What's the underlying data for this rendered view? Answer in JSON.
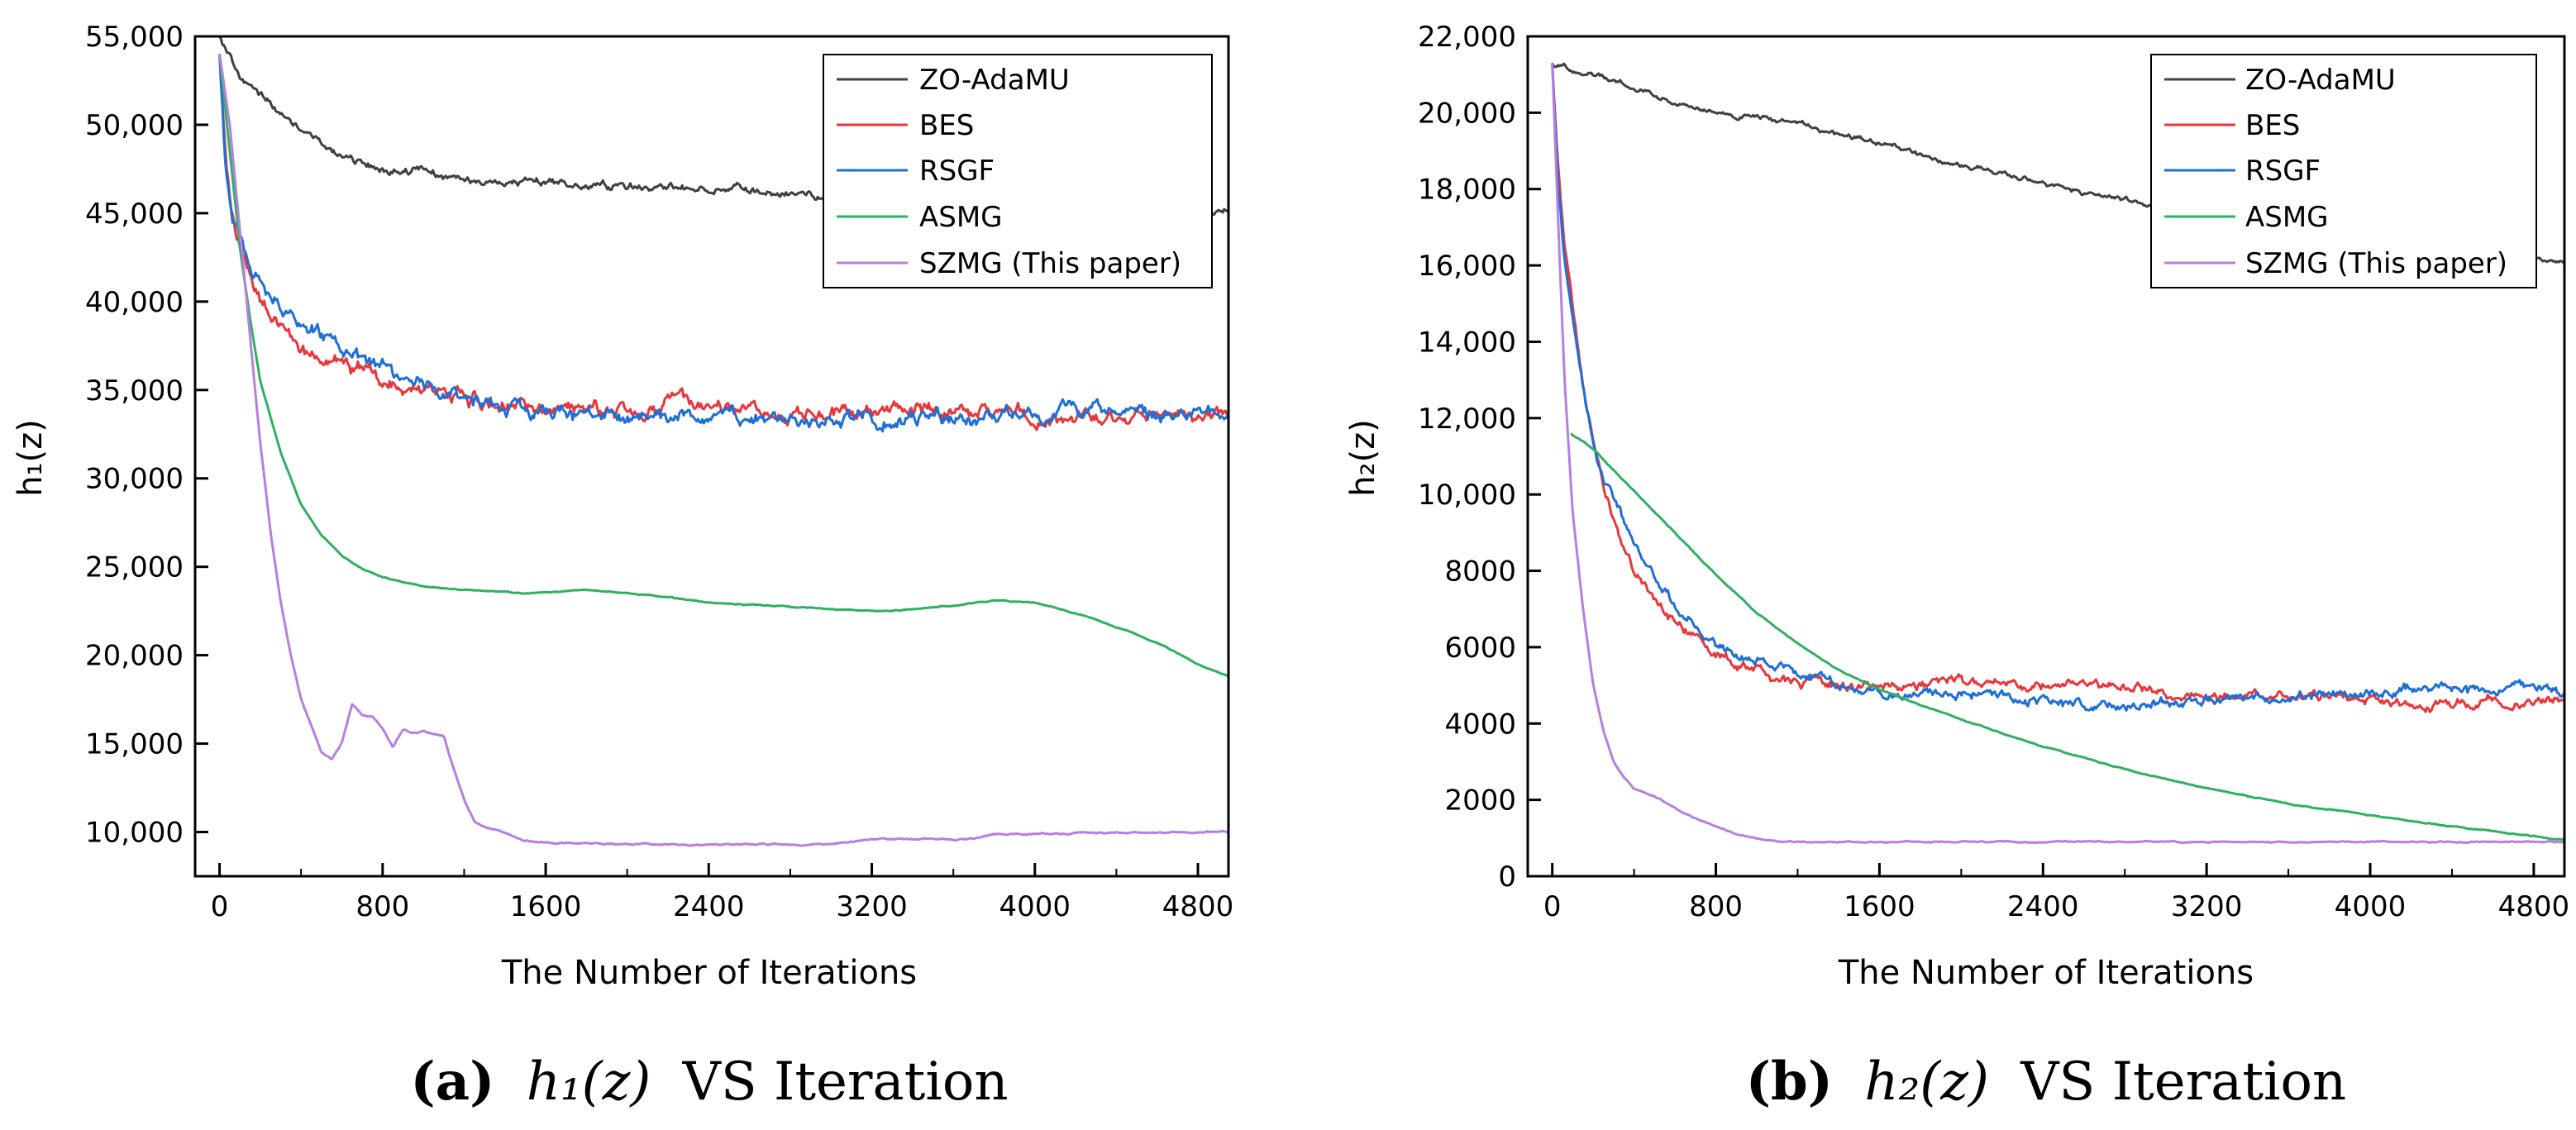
{
  "chart_data": [
    {
      "type": "line",
      "panel": "a",
      "caption": {
        "letter": "(a)",
        "math": "h₁(z)",
        "text": "VS Iteration"
      },
      "xlabel": "The Number of Iterations",
      "ylabel": "h₁(z)",
      "xlim": [
        -120,
        4950
      ],
      "ylim": [
        7500,
        55000
      ],
      "xticks": [
        0,
        800,
        1600,
        2400,
        3200,
        4000,
        4800
      ],
      "xtick_labels": [
        "0",
        "800",
        "1600",
        "2400",
        "3200",
        "4000",
        "4800"
      ],
      "yticks": [
        10000,
        15000,
        20000,
        25000,
        30000,
        35000,
        40000,
        45000,
        50000,
        55000
      ],
      "ytick_labels": [
        "10,000",
        "15,000",
        "20,000",
        "25,000",
        "30,000",
        "35,000",
        "40,000",
        "45,000",
        "50,000",
        "55,000"
      ],
      "grid": false,
      "legend_position": "top-right",
      "series": [
        {
          "name": "ZO-AdaMU",
          "color": "#404040",
          "noise": 200,
          "x": [
            0,
            50,
            100,
            200,
            300,
            400,
            500,
            600,
            700,
            800,
            900,
            1000,
            1100,
            1200,
            1400,
            1600,
            1800,
            2000,
            2200,
            2400,
            2600,
            2800,
            3000,
            3200,
            3400,
            3600,
            3800,
            4000,
            4200,
            4400,
            4600,
            4800,
            4950
          ],
          "y": [
            55000,
            53800,
            52800,
            51600,
            50600,
            49700,
            49000,
            48300,
            47800,
            47500,
            47400,
            47300,
            47000,
            46800,
            46700,
            46700,
            46600,
            46500,
            46500,
            46400,
            46300,
            46100,
            45900,
            45800,
            45700,
            45600,
            45500,
            45400,
            45300,
            45300,
            45200,
            45200,
            45100
          ]
        },
        {
          "name": "BES",
          "color": "#e8373b",
          "noise": 380,
          "x": [
            0,
            30,
            60,
            100,
            150,
            200,
            300,
            400,
            500,
            600,
            700,
            800,
            1000,
            1200,
            1400,
            1600,
            1800,
            2000,
            2400,
            2800,
            3200,
            3600,
            4000,
            4400,
            4800,
            4950
          ],
          "y": [
            54000,
            48000,
            45500,
            43500,
            41500,
            40000,
            38500,
            37500,
            36800,
            36300,
            35900,
            35500,
            35000,
            34600,
            34300,
            34000,
            34000,
            34100,
            34000,
            34000,
            33700,
            33700,
            33500,
            33400,
            33500,
            33500
          ]
        },
        {
          "name": "RSGF",
          "color": "#1f6fd6",
          "noise": 380,
          "x": [
            0,
            30,
            60,
            100,
            150,
            200,
            300,
            400,
            500,
            600,
            700,
            800,
            1000,
            1200,
            1400,
            1600,
            1800,
            2000,
            2400,
            2800,
            3200,
            3600,
            4000,
            4400,
            4800,
            4950
          ],
          "y": [
            54000,
            47500,
            45000,
            43500,
            42000,
            41000,
            39800,
            38800,
            38000,
            37200,
            36500,
            36000,
            35200,
            34500,
            34000,
            33800,
            33600,
            33500,
            33400,
            33400,
            33300,
            33600,
            33900,
            33800,
            33800,
            33800
          ]
        },
        {
          "name": "ASMG",
          "color": "#2fb061",
          "noise": 25,
          "x": [
            0,
            50,
            100,
            150,
            200,
            300,
            400,
            500,
            600,
            700,
            800,
            1000,
            1200,
            1500,
            1800,
            2100,
            2400,
            2700,
            3000,
            3300,
            3600,
            3800,
            4000,
            4200,
            4400,
            4600,
            4800,
            4950
          ],
          "y": [
            54000,
            48500,
            43000,
            39000,
            35500,
            31500,
            28500,
            26800,
            25600,
            24900,
            24400,
            23900,
            23700,
            23500,
            23700,
            23400,
            23000,
            22800,
            22600,
            22500,
            22800,
            23100,
            23000,
            22400,
            21600,
            20700,
            19500,
            18800
          ]
        },
        {
          "name": "SZMG (This paper)",
          "color": "#b77fe0",
          "noise": 40,
          "x": [
            0,
            50,
            100,
            150,
            200,
            250,
            300,
            350,
            400,
            450,
            500,
            550,
            600,
            650,
            700,
            750,
            800,
            850,
            900,
            950,
            1000,
            1050,
            1100,
            1150,
            1200,
            1250,
            1300,
            1400,
            1500,
            1600,
            2000,
            2400,
            2800,
            3000,
            3100,
            3200,
            3700,
            3800,
            4000,
            4400,
            4800,
            4950
          ],
          "y": [
            54000,
            50000,
            44000,
            38000,
            32000,
            27000,
            23000,
            20000,
            17500,
            16000,
            14500,
            14100,
            15000,
            17200,
            16600,
            16500,
            15900,
            14800,
            15800,
            15600,
            15700,
            15500,
            15400,
            13500,
            11800,
            10600,
            10300,
            9900,
            9500,
            9400,
            9300,
            9300,
            9300,
            9300,
            9500,
            9600,
            9600,
            9900,
            9900,
            9950,
            10000,
            10000
          ]
        }
      ]
    },
    {
      "type": "line",
      "panel": "b",
      "caption": {
        "letter": "(b)",
        "math": "h₂(z)",
        "text": "VS Iteration"
      },
      "xlabel": "The Number of Iterations",
      "ylabel": "h₂(z)",
      "xlim": [
        -120,
        4950
      ],
      "ylim": [
        0,
        22000
      ],
      "xticks": [
        0,
        800,
        1600,
        2400,
        3200,
        4000,
        4800
      ],
      "xtick_labels": [
        "0",
        "800",
        "1600",
        "2400",
        "3200",
        "4000",
        "4800"
      ],
      "yticks": [
        0,
        2000,
        4000,
        6000,
        8000,
        10000,
        12000,
        14000,
        16000,
        18000,
        20000,
        22000
      ],
      "ytick_labels": [
        "0",
        "2000",
        "4000",
        "6000",
        "8000",
        "10,000",
        "12,000",
        "14,000",
        "16,000",
        "18,000",
        "20,000",
        "22,000"
      ],
      "grid": false,
      "legend_position": "top-right",
      "series": [
        {
          "name": "ZO-AdaMU",
          "color": "#404040",
          "noise": 60,
          "x": [
            0,
            200,
            400,
            600,
            800,
            1000,
            1200,
            1400,
            1600,
            1800,
            2000,
            2200,
            2400,
            2600,
            2800,
            3000,
            3200,
            3400,
            3600,
            3800,
            4000,
            4200,
            4400,
            4600,
            4800,
            4950
          ],
          "y": [
            21300,
            21000,
            20700,
            20200,
            20000,
            19900,
            19700,
            19400,
            19200,
            18900,
            18600,
            18400,
            18200,
            17900,
            17700,
            17500,
            17400,
            17200,
            17100,
            17000,
            16800,
            16600,
            16400,
            16300,
            16200,
            16050
          ]
        },
        {
          "name": "BES",
          "color": "#e8373b",
          "noise": 120,
          "x": [
            0,
            30,
            60,
            100,
            150,
            200,
            250,
            300,
            400,
            500,
            600,
            700,
            800,
            1000,
            1200,
            1400,
            1600,
            2000,
            2400,
            2800,
            3200,
            3600,
            4000,
            4200,
            4400,
            4600,
            4800,
            4950
          ],
          "y": [
            21300,
            18500,
            16500,
            14800,
            13000,
            11500,
            10300,
            9300,
            8000,
            7200,
            6700,
            6200,
            5800,
            5400,
            5100,
            5000,
            4900,
            5100,
            5000,
            5000,
            4700,
            4800,
            4700,
            4500,
            4500,
            4600,
            4600,
            4600
          ]
        },
        {
          "name": "RSGF",
          "color": "#1f6fd6",
          "noise": 120,
          "x": [
            0,
            30,
            60,
            100,
            150,
            200,
            250,
            300,
            400,
            500,
            600,
            700,
            800,
            1000,
            1200,
            1400,
            1600,
            2000,
            2400,
            2800,
            3200,
            3600,
            4000,
            4200,
            4400,
            4600,
            4800,
            4950
          ],
          "y": [
            21300,
            18000,
            16200,
            14500,
            12800,
            11300,
            10400,
            9900,
            8700,
            7800,
            7100,
            6500,
            6000,
            5600,
            5300,
            5000,
            4800,
            4800,
            4600,
            4500,
            4600,
            4700,
            4800,
            4900,
            4900,
            4800,
            4900,
            4800
          ]
        },
        {
          "name": "ASMG",
          "color": "#2fb061",
          "noise": 12,
          "x": [
            90,
            200,
            400,
            600,
            800,
            1000,
            1200,
            1400,
            1600,
            1800,
            2000,
            2400,
            2800,
            3200,
            3600,
            4000,
            4400,
            4800,
            4950
          ],
          "y": [
            11600,
            11200,
            10100,
            9000,
            7900,
            6900,
            6100,
            5400,
            4900,
            4500,
            4100,
            3400,
            2800,
            2300,
            1900,
            1600,
            1300,
            1050,
            950
          ]
        },
        {
          "name": "SZMG (This paper)",
          "color": "#b77fe0",
          "noise": 15,
          "x": [
            0,
            30,
            60,
            100,
            150,
            200,
            250,
            300,
            350,
            400,
            500,
            600,
            700,
            800,
            900,
            1000,
            1100,
            1200,
            1600,
            2000,
            2400,
            2800,
            3200,
            3600,
            4000,
            4400,
            4800,
            4950
          ],
          "y": [
            21300,
            17000,
            13000,
            9500,
            7000,
            5000,
            3800,
            3000,
            2600,
            2300,
            2100,
            1800,
            1500,
            1300,
            1100,
            1000,
            900,
            900,
            900,
            900,
            900,
            900,
            900,
            900,
            900,
            900,
            900,
            900
          ]
        }
      ]
    }
  ]
}
